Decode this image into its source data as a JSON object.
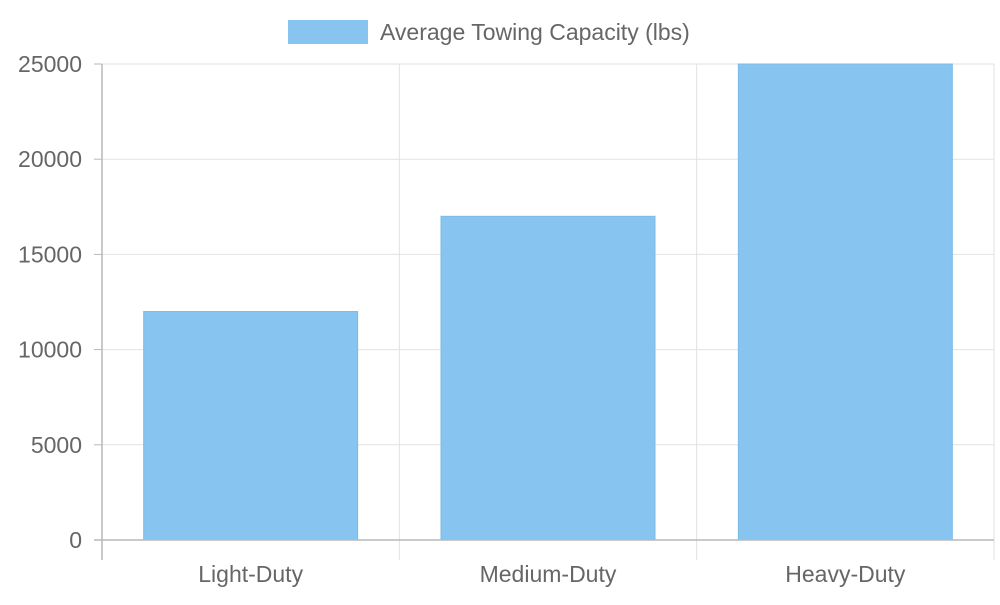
{
  "chart_data": {
    "type": "bar",
    "categories": [
      "Light-Duty",
      "Medium-Duty",
      "Heavy-Duty"
    ],
    "series": [
      {
        "name": "Average Towing Capacity (lbs)",
        "values": [
          12000,
          17000,
          25000
        ],
        "color": "#87C5F0"
      }
    ],
    "ylim": [
      0,
      25000
    ],
    "yticks": [
      0,
      5000,
      10000,
      15000,
      20000,
      25000
    ],
    "grid": true,
    "legend_position": "top",
    "title": "",
    "xlabel": "",
    "ylabel": ""
  },
  "colors": {
    "grid": "#e2e2e2",
    "axis": "#b8b8b8",
    "text": "#666666",
    "bar_stroke": "#7dbbe7"
  }
}
